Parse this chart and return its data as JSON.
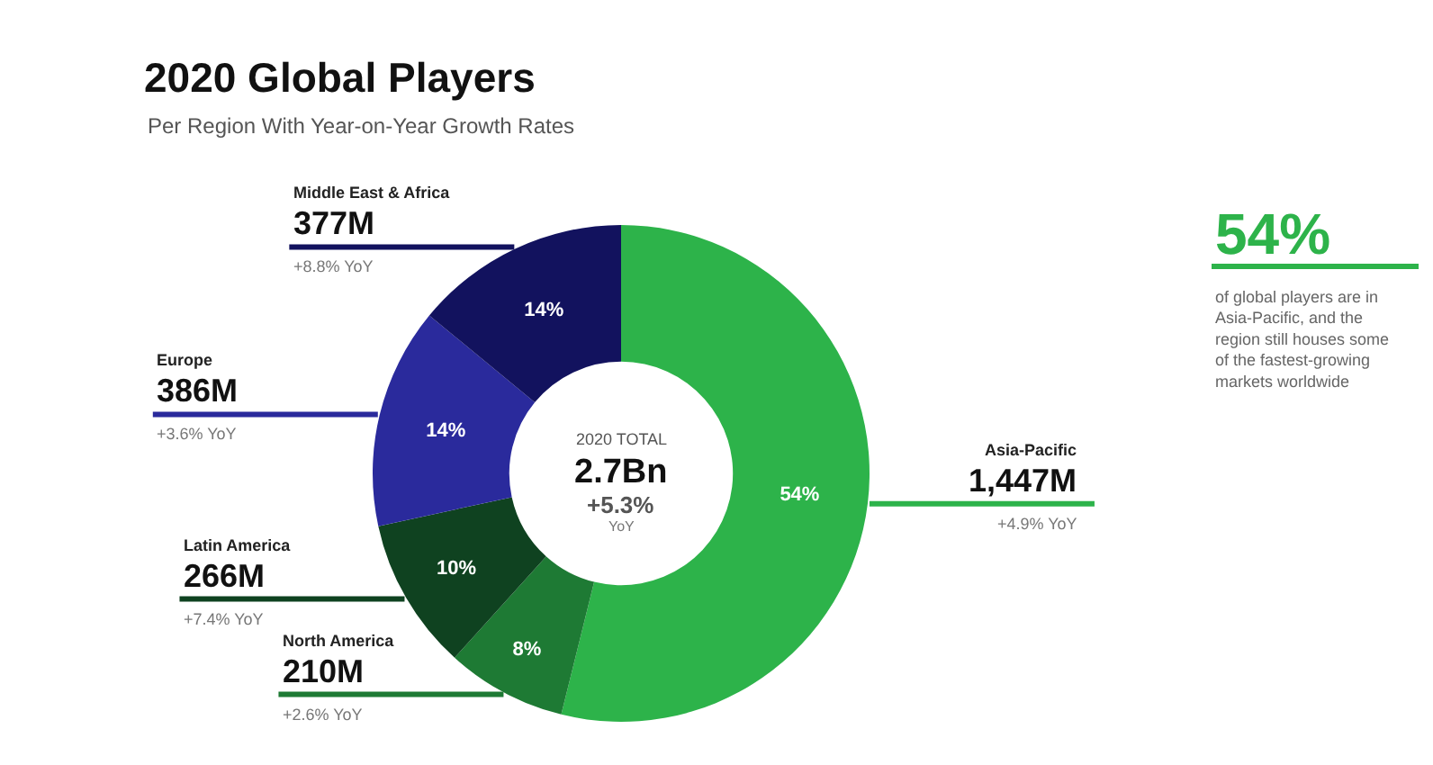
{
  "chart_data": {
    "type": "donut",
    "title": "2020 Global Players",
    "subtitle": "Per Region With Year-on-Year Growth Rates",
    "categories": [
      "Asia-Pacific",
      "North America",
      "Latin America",
      "Europe",
      "Middle East & Africa"
    ],
    "values": [
      1447,
      210,
      266,
      386,
      377
    ],
    "value_labels": [
      "1,447M",
      "210M",
      "266M",
      "386M",
      "377M"
    ],
    "colors": [
      "#2db34a",
      "#1e7a34",
      "#0f4220",
      "#2a2a9c",
      "#12125e"
    ],
    "annotations": [
      {
        "text": "54%",
        "x": "Asia-Pacific"
      },
      {
        "text": "+4.9% YoY",
        "x": "Asia-Pacific"
      },
      {
        "text": "8%",
        "x": "North America"
      },
      {
        "text": "+2.6% YoY",
        "x": "North America"
      },
      {
        "text": "10%",
        "x": "Latin America"
      },
      {
        "text": "+7.4% YoY",
        "x": "Latin America"
      },
      {
        "text": "14%",
        "x": "Europe"
      },
      {
        "text": "+3.6% YoY",
        "x": "Europe"
      },
      {
        "text": "14%",
        "x": "Middle East & Africa"
      },
      {
        "text": "+8.8% YoY",
        "x": "Middle East & Africa"
      },
      "2020 TOTAL",
      "2.7Bn",
      "+5.3%",
      "YoY",
      "54%",
      "of global players are in Asia-Pacific, and the region still houses some of the fastest-growing markets worldwide"
    ]
  }
}
